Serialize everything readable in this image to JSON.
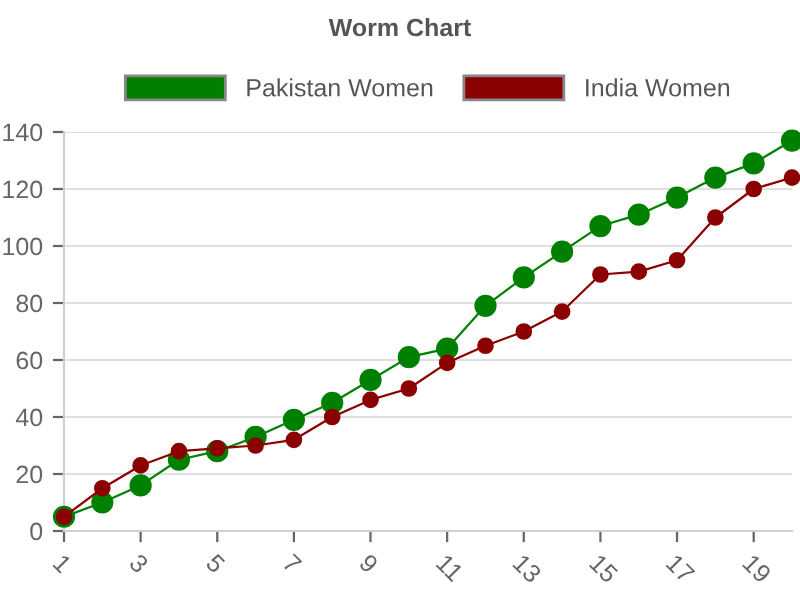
{
  "chart_data": {
    "type": "line",
    "title": "Worm Chart",
    "x": [
      1,
      2,
      3,
      4,
      5,
      6,
      7,
      8,
      9,
      10,
      11,
      12,
      13,
      14,
      15,
      16,
      17,
      18,
      19,
      20
    ],
    "series": [
      {
        "name": "Pakistan Women",
        "color": "#008000",
        "values": [
          5,
          10,
          16,
          25,
          28,
          33,
          39,
          45,
          53,
          61,
          64,
          79,
          89,
          98,
          107,
          111,
          117,
          124,
          129,
          137
        ]
      },
      {
        "name": "India Women",
        "color": "#8b0000",
        "values": [
          5,
          15,
          23,
          28,
          29,
          30,
          32,
          40,
          46,
          50,
          59,
          65,
          70,
          77,
          90,
          91,
          95,
          110,
          120,
          124
        ]
      }
    ],
    "xlim": [
      1,
      20
    ],
    "xticks": [
      1,
      3,
      5,
      7,
      9,
      11,
      13,
      15,
      17,
      19
    ],
    "ylim": [
      0,
      140
    ],
    "yticks": [
      0,
      20,
      40,
      60,
      80,
      100,
      120,
      140
    ],
    "grid": "y",
    "legend": "top",
    "marker": "circle",
    "line_style": "solid"
  }
}
